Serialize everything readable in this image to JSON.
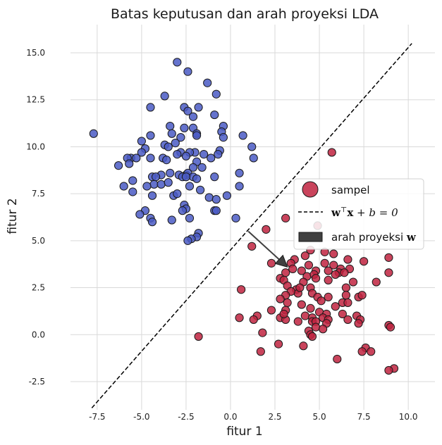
{
  "chart_data": {
    "type": "scatter",
    "title": "Batas keputusan dan arah proyeksi LDA",
    "xlabel": "fitur 1",
    "ylabel": "fitur 2",
    "xlim": [
      -9.0,
      11.5
    ],
    "ylim": [
      -4.0,
      16.5
    ],
    "xticks": [
      -7.5,
      -5.0,
      -2.5,
      0.0,
      2.5,
      5.0,
      7.5,
      10.0
    ],
    "xtick_labels": [
      "-7.5",
      "-5.0",
      "-2.5",
      "0.0",
      "2.5",
      "5.0",
      "7.5",
      "10.0"
    ],
    "yticks": [
      -2.5,
      0.0,
      2.5,
      5.0,
      7.5,
      10.0,
      12.5,
      15.0
    ],
    "ytick_labels": [
      "-2.5",
      "0.0",
      "2.5",
      "5.0",
      "7.5",
      "10.0",
      "12.5",
      "15.0"
    ],
    "grid": true,
    "legend_position": "right",
    "legend": {
      "sample": "sampel",
      "boundary_bold": "w",
      "boundary_sup": "⊤",
      "boundary_bold2": "x",
      "boundary_rest": " + b = 0",
      "arrow_text": "arah proyeksi ",
      "arrow_bold": "w"
    },
    "colors": {
      "class_a": "#4a5bc4",
      "class_b": "#c0233f",
      "edge": "#1a1a1a",
      "boundary": "#000000",
      "arrow": "#404040",
      "grid": "#d9d9d9"
    },
    "boundary_line": {
      "x": [
        -7.8,
        10.2
      ],
      "y": [
        -3.9,
        15.5
      ]
    },
    "projection_arrow": {
      "start": [
        1.0,
        5.5
      ],
      "end": [
        3.2,
        3.6
      ]
    },
    "series": [
      {
        "class": "a",
        "points": [
          [
            -3.0,
            14.5
          ],
          [
            -2.4,
            14.0
          ],
          [
            -1.3,
            13.4
          ],
          [
            -0.8,
            12.8
          ],
          [
            -3.7,
            12.7
          ],
          [
            -1.8,
            12.1
          ],
          [
            -2.6,
            12.1
          ],
          [
            -4.5,
            12.1
          ],
          [
            -2.4,
            11.9
          ],
          [
            -2.1,
            11.6
          ],
          [
            -0.9,
            11.7
          ],
          [
            -3.4,
            11.1
          ],
          [
            -2.6,
            11.0
          ],
          [
            -2.1,
            11.0
          ],
          [
            -0.4,
            11.1
          ],
          [
            -0.5,
            10.8
          ],
          [
            -3.3,
            10.7
          ],
          [
            -1.9,
            10.7
          ],
          [
            -1.9,
            10.6
          ],
          [
            -4.5,
            10.6
          ],
          [
            -2.8,
            10.5
          ],
          [
            0.7,
            10.6
          ],
          [
            -0.4,
            10.5
          ],
          [
            -7.7,
            10.7
          ],
          [
            -5.0,
            10.3
          ],
          [
            -3.1,
            10.2
          ],
          [
            -3.7,
            10.1
          ],
          [
            -3.5,
            10.0
          ],
          [
            1.2,
            10.0
          ],
          [
            -4.8,
            9.9
          ],
          [
            -5.0,
            9.7
          ],
          [
            -2.0,
            9.7
          ],
          [
            -2.8,
            9.7
          ],
          [
            -3.0,
            9.6
          ],
          [
            -2.3,
            9.7
          ],
          [
            -1.5,
            9.6
          ],
          [
            -0.6,
            9.8
          ],
          [
            -0.7,
            9.6
          ],
          [
            -4.5,
            9.4
          ],
          [
            -3.8,
            9.4
          ],
          [
            -3.6,
            9.3
          ],
          [
            -1.9,
            9.2
          ],
          [
            -5.6,
            9.4
          ],
          [
            -5.3,
            9.4
          ],
          [
            -5.8,
            9.4
          ],
          [
            -5.7,
            9.1
          ],
          [
            -2.5,
            9.5
          ],
          [
            -1.1,
            9.4
          ],
          [
            -2.1,
            8.9
          ],
          [
            -1.6,
            8.9
          ],
          [
            1.3,
            9.4
          ],
          [
            -6.3,
            9.0
          ],
          [
            -2.9,
            8.5
          ],
          [
            -3.4,
            8.6
          ],
          [
            -2.5,
            8.5
          ],
          [
            -2.4,
            8.6
          ],
          [
            -2.1,
            8.4
          ],
          [
            -3.9,
            8.5
          ],
          [
            -4.4,
            8.4
          ],
          [
            -4.2,
            8.4
          ],
          [
            -4.3,
            8.0
          ],
          [
            -3.9,
            8.0
          ],
          [
            -3.5,
            8.1
          ],
          [
            -2.7,
            8.4
          ],
          [
            -2.5,
            8.4
          ],
          [
            -1.9,
            8.3
          ],
          [
            -0.9,
            8.4
          ],
          [
            0.5,
            8.6
          ],
          [
            -5.5,
            8.2
          ],
          [
            -4.7,
            7.9
          ],
          [
            -2.3,
            7.9
          ],
          [
            0.5,
            7.9
          ],
          [
            -6.0,
            7.9
          ],
          [
            -5.5,
            7.6
          ],
          [
            -4.4,
            7.4
          ],
          [
            -3.2,
            7.4
          ],
          [
            -3.0,
            7.5
          ],
          [
            -1.7,
            7.7
          ],
          [
            -1.2,
            7.3
          ],
          [
            -0.2,
            7.4
          ],
          [
            -0.8,
            7.2
          ],
          [
            -2.6,
            6.9
          ],
          [
            -2.5,
            6.7
          ],
          [
            -2.7,
            6.6
          ],
          [
            -0.9,
            6.6
          ],
          [
            -0.8,
            6.6
          ],
          [
            -4.8,
            6.6
          ],
          [
            -5.1,
            6.4
          ],
          [
            -4.5,
            6.2
          ],
          [
            -4.4,
            6.0
          ],
          [
            -3.3,
            6.1
          ],
          [
            -2.3,
            6.2
          ],
          [
            0.3,
            6.2
          ],
          [
            -1.8,
            5.4
          ],
          [
            -1.9,
            5.2
          ],
          [
            -2.2,
            5.1
          ],
          [
            -2.4,
            5.0
          ]
        ]
      },
      {
        "class": "b",
        "points": [
          [
            5.7,
            9.7
          ],
          [
            3.1,
            6.2
          ],
          [
            4.9,
            5.8
          ],
          [
            2.0,
            5.6
          ],
          [
            1.2,
            4.7
          ],
          [
            4.5,
            4.5
          ],
          [
            5.3,
            4.4
          ],
          [
            5.8,
            4.3
          ],
          [
            4.2,
            4.2
          ],
          [
            3.6,
            4.0
          ],
          [
            6.6,
            4.0
          ],
          [
            7.5,
            3.9
          ],
          [
            8.9,
            4.1
          ],
          [
            2.3,
            3.8
          ],
          [
            3.4,
            3.8
          ],
          [
            4.4,
            3.7
          ],
          [
            5.3,
            3.8
          ],
          [
            5.8,
            3.7
          ],
          [
            6.2,
            3.5
          ],
          [
            3.5,
            3.5
          ],
          [
            4.0,
            3.4
          ],
          [
            4.8,
            3.4
          ],
          [
            5.5,
            3.4
          ],
          [
            6.1,
            3.3
          ],
          [
            6.7,
            3.5
          ],
          [
            3.1,
            3.3
          ],
          [
            4.3,
            3.1
          ],
          [
            4.7,
            3.2
          ],
          [
            5.9,
            3.2
          ],
          [
            6.4,
            3.3
          ],
          [
            8.9,
            3.3
          ],
          [
            2.8,
            3.0
          ],
          [
            3.0,
            2.9
          ],
          [
            4.1,
            2.8
          ],
          [
            4.8,
            3.0
          ],
          [
            5.5,
            2.9
          ],
          [
            6.9,
            2.8
          ],
          [
            8.2,
            2.8
          ],
          [
            3.2,
            2.6
          ],
          [
            3.7,
            2.4
          ],
          [
            3.8,
            2.2
          ],
          [
            3.9,
            2.5
          ],
          [
            4.5,
            2.5
          ],
          [
            6.5,
            2.5
          ],
          [
            0.6,
            2.4
          ],
          [
            3.4,
            2.3
          ],
          [
            3.1,
            2.1
          ],
          [
            4.6,
            2.2
          ],
          [
            4.9,
            2.0
          ],
          [
            5.5,
            2.0
          ],
          [
            6.5,
            2.1
          ],
          [
            7.2,
            2.0
          ],
          [
            7.4,
            2.1
          ],
          [
            2.8,
            1.9
          ],
          [
            3.2,
            1.7
          ],
          [
            4.0,
            1.6
          ],
          [
            5.1,
            1.8
          ],
          [
            5.9,
            1.5
          ],
          [
            6.3,
            1.7
          ],
          [
            6.6,
            1.7
          ],
          [
            3.1,
            1.3
          ],
          [
            4.5,
            1.4
          ],
          [
            5.0,
            1.2
          ],
          [
            5.4,
            1.1
          ],
          [
            6.3,
            1.1
          ],
          [
            4.2,
            1.0
          ],
          [
            4.6,
            0.9
          ],
          [
            5.2,
            0.9
          ],
          [
            5.5,
            0.8
          ],
          [
            6.6,
            0.8
          ],
          [
            7.1,
            1.0
          ],
          [
            7.3,
            0.8
          ],
          [
            1.5,
            1.0
          ],
          [
            2.8,
            0.9
          ],
          [
            3.1,
            0.8
          ],
          [
            2.3,
            1.3
          ],
          [
            3.0,
            1.1
          ],
          [
            0.5,
            0.9
          ],
          [
            1.3,
            0.8
          ],
          [
            3.8,
            0.7
          ],
          [
            4.6,
            0.7
          ],
          [
            4.8,
            0.7
          ],
          [
            5.4,
            0.6
          ],
          [
            7.2,
            0.6
          ],
          [
            4.8,
            0.4
          ],
          [
            5.2,
            0.3
          ],
          [
            8.9,
            0.5
          ],
          [
            9.0,
            0.4
          ],
          [
            1.8,
            0.1
          ],
          [
            4.4,
            0.2
          ],
          [
            4.5,
            0.0
          ],
          [
            4.6,
            -0.1
          ],
          [
            -1.8,
            -0.1
          ],
          [
            2.7,
            -0.5
          ],
          [
            4.1,
            -0.6
          ],
          [
            1.7,
            -0.9
          ],
          [
            7.6,
            -0.7
          ],
          [
            7.4,
            -0.9
          ],
          [
            7.9,
            -0.9
          ],
          [
            6.0,
            -1.3
          ],
          [
            9.2,
            -1.8
          ],
          [
            8.9,
            -1.9
          ]
        ]
      }
    ]
  }
}
